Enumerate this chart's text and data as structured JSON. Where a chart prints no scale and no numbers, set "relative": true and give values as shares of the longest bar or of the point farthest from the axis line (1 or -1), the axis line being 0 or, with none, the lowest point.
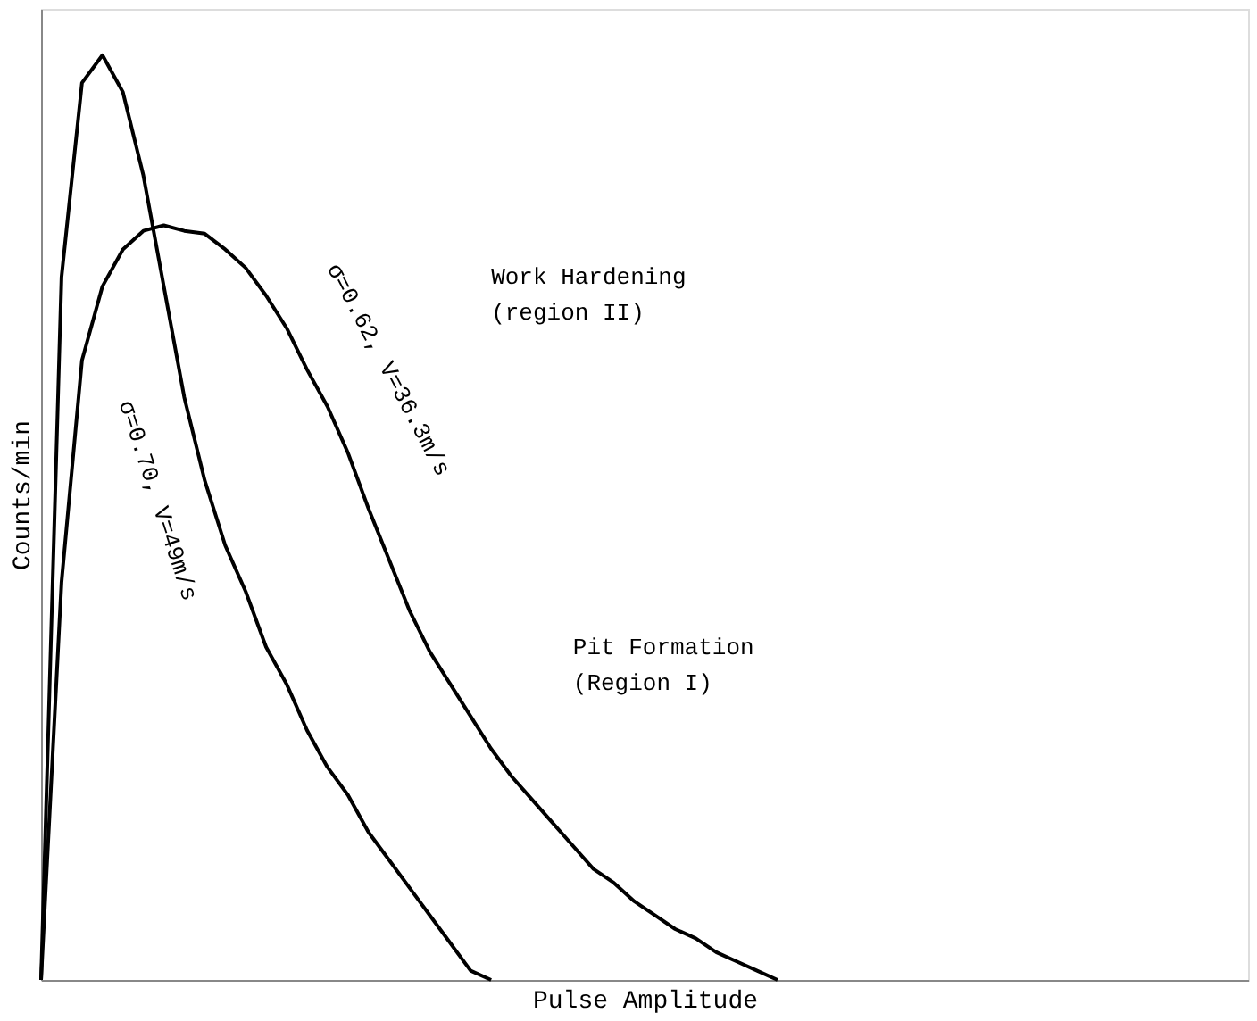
{
  "chart_data": {
    "type": "line",
    "relative": true,
    "xlabel": "Pulse Amplitude",
    "ylabel": "Counts/min",
    "tick_labels": false,
    "legend": false,
    "marker": "none",
    "line_style": "solid",
    "categories": [
      null,
      null,
      null,
      null,
      null,
      null,
      null,
      null,
      null,
      null,
      null,
      null,
      null,
      null,
      null,
      null,
      null,
      null,
      null,
      null,
      null,
      null,
      null,
      null,
      null,
      null,
      null,
      null,
      null,
      null,
      null,
      null,
      null,
      null,
      null,
      null,
      null,
      null,
      null,
      null,
      null,
      null,
      null,
      null,
      null,
      null,
      null,
      null,
      null,
      null,
      null,
      null,
      null,
      null,
      null,
      null,
      null,
      null,
      null,
      null
    ],
    "series": [
      {
        "name": "σ=0.70, V=49m/s",
        "color": "#000000",
        "values": [
          0,
          0.76,
          0.97,
          1,
          0.96,
          0.87,
          0.75,
          0.63,
          0.54,
          0.47,
          0.42,
          0.36,
          0.32,
          0.27,
          0.23,
          0.2,
          0.16,
          0.13,
          0.1,
          0.07,
          0.04,
          0.01,
          0,
          null,
          null,
          null,
          null,
          null,
          null,
          null,
          null,
          null,
          null,
          null,
          null,
          null,
          null,
          null,
          null,
          null,
          null,
          null,
          null,
          null,
          null,
          null,
          null,
          null,
          null,
          null,
          null,
          null,
          null,
          null,
          null,
          null,
          null,
          null,
          null,
          null
        ]
      },
      {
        "name": "σ=0.62, V=36.3m/s",
        "color": "#000000",
        "values": [
          0,
          0.43,
          0.67,
          0.75,
          0.79,
          0.81,
          0.816,
          0.81,
          0.807,
          0.79,
          0.77,
          0.74,
          0.705,
          0.66,
          0.62,
          0.57,
          0.51,
          0.455,
          0.4,
          0.355,
          0.32,
          0.285,
          0.25,
          0.22,
          0.195,
          0.17,
          0.145,
          0.12,
          0.105,
          0.085,
          0.07,
          0.055,
          0.045,
          0.03,
          0.02,
          0.01,
          0,
          null,
          null,
          null,
          null,
          null,
          null,
          null,
          null,
          null,
          null,
          null,
          null,
          null,
          null,
          null,
          null,
          null,
          null,
          null,
          null,
          null,
          null,
          null
        ]
      }
    ],
    "annotations": [
      "Work Hardening (region II)",
      "Pit Formation (Region I)"
    ]
  }
}
